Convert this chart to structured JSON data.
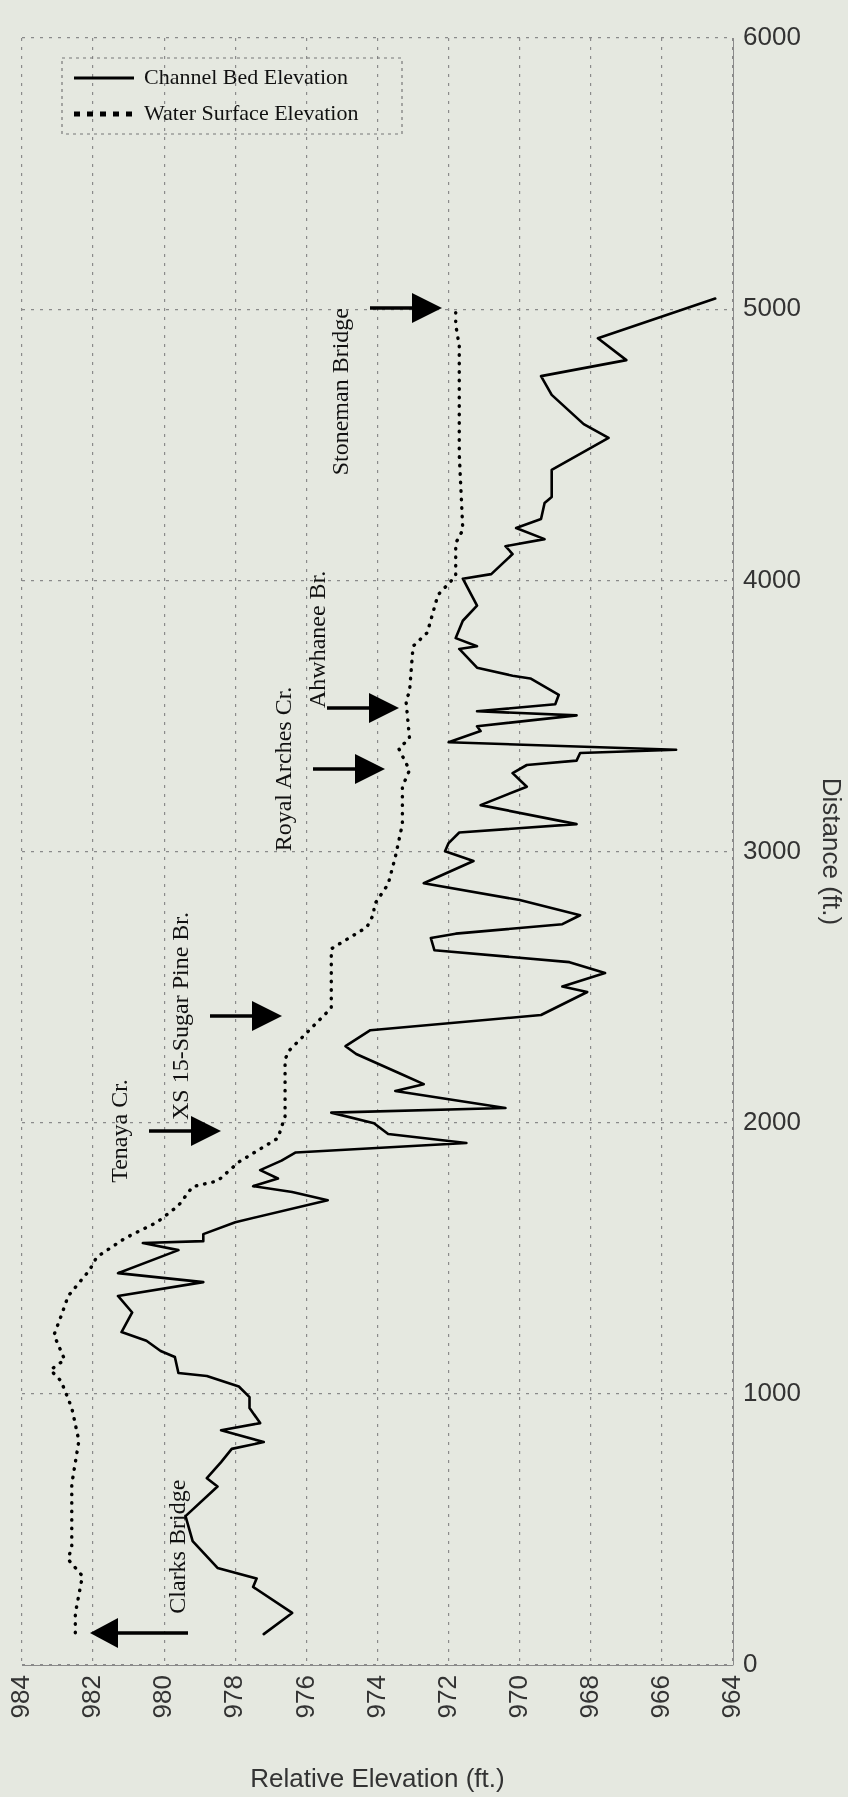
{
  "chart_data": {
    "type": "line",
    "orientation": "horizontal",
    "xlabel": "Relative Elevation (ft.)",
    "ylabel": "Distance (ft.)",
    "xlim": [
      984,
      964
    ],
    "xticks": [
      984,
      982,
      980,
      978,
      976,
      974,
      972,
      970,
      968,
      966,
      964
    ],
    "ylim": [
      0,
      6000
    ],
    "yticks": [
      0,
      1000,
      2000,
      3000,
      4000,
      5000,
      6000
    ],
    "grid": true,
    "legend": "top left",
    "marker": "none",
    "series": [
      {
        "name": "Channel Bed Elevation",
        "color": "#000000",
        "line_style": "solid",
        "x": [
          114,
          192,
          288,
          319,
          358,
          457,
          549,
          658,
          689,
          748,
          797,
          822,
          866,
          892,
          948,
          988,
          1027,
          1066,
          1077,
          1136,
          1158,
          1196,
          1228,
          1300,
          1361,
          1412,
          1445,
          1530,
          1556,
          1563,
          1589,
          1633,
          1714,
          1744,
          1766,
          1794,
          1825,
          1860,
          1890,
          1925,
          1958,
          1998,
          2037,
          2054,
          2117,
          2142,
          2183,
          2253,
          2282,
          2341,
          2397,
          2482,
          2502,
          2552,
          2592,
          2636,
          2681,
          2697,
          2732,
          2765,
          2821,
          2883,
          2965,
          3001,
          3031,
          3070,
          3101,
          3171,
          3239,
          3289,
          3319,
          3335,
          3363,
          3375,
          3403,
          3444,
          3462,
          3502,
          3517,
          3543,
          3578,
          3638,
          3648,
          3678,
          3747,
          3757,
          3787,
          3851,
          3907,
          4006,
          4023,
          4097,
          4126,
          4152,
          4193,
          4226,
          4285,
          4307,
          4407,
          4525,
          4576,
          4684,
          4753,
          4812,
          4893,
          5039
        ],
        "values": [
          977.2,
          976.4,
          977.5,
          977.4,
          978.5,
          979.2,
          979.4,
          978.5,
          978.8,
          978.4,
          978.1,
          977.2,
          978.4,
          977.3,
          977.6,
          977.6,
          977.9,
          978.8,
          979.6,
          979.7,
          980.1,
          980.5,
          981.2,
          980.9,
          981.3,
          978.9,
          981.3,
          979.6,
          980.6,
          978.9,
          978.9,
          978.0,
          975.4,
          976.4,
          977.5,
          976.8,
          977.3,
          976.7,
          976.3,
          971.5,
          973.7,
          974.1,
          975.3,
          970.4,
          973.5,
          972.7,
          973.4,
          974.6,
          974.9,
          974.2,
          969.4,
          968.1,
          968.8,
          967.6,
          968.6,
          972.4,
          972.5,
          971.8,
          968.8,
          968.3,
          970.0,
          972.7,
          971.3,
          972.1,
          972.0,
          971.7,
          968.4,
          971.1,
          969.8,
          970.2,
          969.8,
          968.4,
          968.3,
          965.6,
          972.0,
          971.1,
          971.2,
          968.4,
          971.2,
          969.0,
          968.9,
          969.7,
          970.2,
          971.2,
          971.7,
          971.2,
          971.8,
          971.6,
          971.2,
          971.6,
          970.8,
          970.2,
          970.4,
          969.3,
          970.1,
          969.4,
          969.3,
          969.1,
          969.1,
          967.5,
          968.2,
          969.1,
          969.4,
          967.0,
          967.8,
          964.5
        ]
      },
      {
        "name": "Water Surface Elevation",
        "color": "#000000",
        "line_style": "dotted",
        "x": [
          119,
          190,
          328,
          389,
          439,
          667,
          827,
          948,
          1047,
          1088,
          1126,
          1217,
          1287,
          1361,
          1456,
          1504,
          1574,
          1633,
          1694,
          1764,
          1785,
          1855,
          1943,
          2024,
          2233,
          2264,
          2423,
          2641,
          2721,
          2771,
          2802,
          2880,
          2979,
          3101,
          3239,
          3300,
          3379,
          3418,
          3558,
          3588,
          3757,
          3807,
          3946,
          4016,
          4137,
          4186,
          4465,
          4664,
          4864,
          4943,
          5004
        ],
        "values": [
          982.5,
          982.5,
          982.3,
          982.7,
          982.6,
          982.6,
          982.4,
          982.6,
          982.9,
          983.2,
          982.8,
          983.1,
          982.9,
          982.7,
          982.1,
          981.9,
          981.1,
          980.2,
          979.6,
          979.2,
          978.5,
          977.9,
          976.8,
          976.6,
          976.6,
          976.5,
          975.3,
          975.3,
          974.3,
          974.1,
          974.1,
          973.7,
          973.5,
          973.3,
          973.3,
          973.1,
          973.4,
          973.1,
          973.2,
          973.1,
          973.0,
          972.6,
          972.3,
          971.8,
          971.8,
          971.6,
          971.7,
          971.7,
          971.7,
          971.8,
          971.8
        ]
      }
    ],
    "annotations": [
      "Clarks Bridge",
      "Tenaya Cr.",
      "XS 15-Sugar Pine Br.",
      "Royal Arches Cr.",
      "Ahwhanee Br.",
      "Stoneman Bridge"
    ]
  }
}
